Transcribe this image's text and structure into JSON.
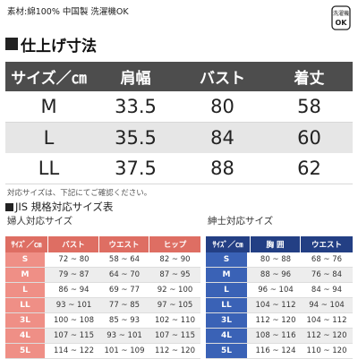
{
  "header": {
    "material_text": "素材:綿100% 中国製 洗濯機OK",
    "wash_label_top": "洗濯機",
    "wash_label_bottom": "OK"
  },
  "finished_size": {
    "title": "仕上げ寸法",
    "columns": [
      "サイズ／㎝",
      "肩幅",
      "バスト",
      "着丈"
    ],
    "rows": [
      {
        "size": "M",
        "shoulder": "33.5",
        "bust": "80",
        "length": "58"
      },
      {
        "size": "L",
        "shoulder": "35.5",
        "bust": "84",
        "length": "60"
      },
      {
        "size": "LL",
        "shoulder": "37.5",
        "bust": "88",
        "length": "62"
      }
    ]
  },
  "note": "対応サイズは、下記にてご確認ください。",
  "jis": {
    "title": "JIS 規格対応サイズ表",
    "ladies": {
      "title": "婦人対応サイズ",
      "columns": [
        "ｻｲｽﾞ／㎝",
        "バスト",
        "ウエスト",
        "ヒップ"
      ],
      "rows": [
        {
          "size": "S",
          "bust": "72 ~ 80",
          "waist": "58 ~ 64",
          "hip": "82 ~ 90"
        },
        {
          "size": "M",
          "bust": "79 ~ 87",
          "waist": "64 ~ 70",
          "hip": "87 ~ 95"
        },
        {
          "size": "L",
          "bust": "86 ~ 94",
          "waist": "69 ~ 77",
          "hip": "92 ~ 100"
        },
        {
          "size": "LL",
          "bust": "93 ~ 101",
          "waist": "77 ~ 85",
          "hip": "97 ~ 105"
        },
        {
          "size": "3L",
          "bust": "100 ~ 108",
          "waist": "85 ~ 93",
          "hip": "102 ~ 110"
        },
        {
          "size": "4L",
          "bust": "107 ~ 115",
          "waist": "93 ~ 101",
          "hip": "107 ~ 115"
        },
        {
          "size": "5L",
          "bust": "114 ~ 122",
          "waist": "101 ~ 109",
          "hip": "112 ~ 120"
        }
      ]
    },
    "mens": {
      "title": "紳士対応サイズ",
      "columns": [
        "ｻｲｽﾞ／㎝",
        "胸 囲",
        "ウエスト"
      ],
      "rows": [
        {
          "size": "S",
          "chest": "80 ~ 88",
          "waist": "68 ~ 76"
        },
        {
          "size": "M",
          "chest": "88 ~ 96",
          "waist": "76 ~ 84"
        },
        {
          "size": "L",
          "chest": "96 ~ 104",
          "waist": "84 ~ 94"
        },
        {
          "size": "LL",
          "chest": "104 ~ 112",
          "waist": "94 ~ 104"
        },
        {
          "size": "3L",
          "chest": "112 ~ 120",
          "waist": "104 ~ 112"
        },
        {
          "size": "4L",
          "chest": "108 ~ 116",
          "waist": "112 ~ 120"
        },
        {
          "size": "5L",
          "chest": "116 ~ 124",
          "waist": "110 ~ 120"
        }
      ]
    }
  },
  "colors": {
    "header_dark": "#4d4d4d",
    "ladies_head": "#de6e63",
    "ladies_size": "#ef8f86",
    "mens_head": "#233f84",
    "mens_size": "#3a62b6"
  }
}
